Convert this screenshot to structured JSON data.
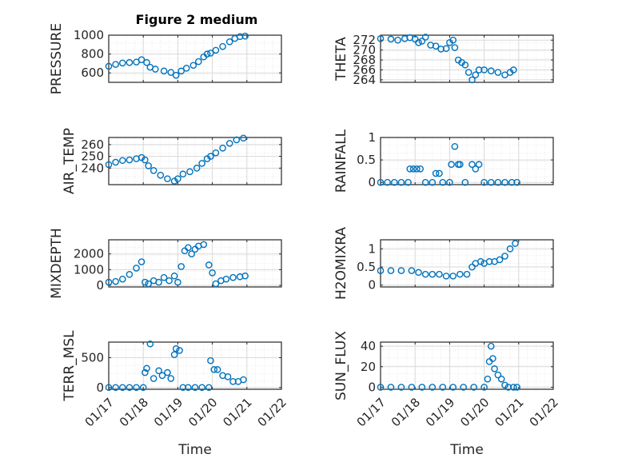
{
  "figure": {
    "title": "Figure 2 medium"
  },
  "colors": {
    "marker": "#0072BD",
    "axis": "#262626",
    "grid": "#d9d9d9"
  },
  "chart_data": [
    {
      "id": "pressure",
      "type": "scatter",
      "ylabel": "PRESSURE",
      "ylim": [
        500,
        1000
      ],
      "yticks": [
        600,
        800,
        1000
      ],
      "yticklabels": [
        "600",
        "800",
        "1000"
      ],
      "xlim": [
        0,
        5
      ],
      "xticks": [
        0,
        1,
        2,
        3,
        4,
        5
      ],
      "xticklabels": [],
      "xlabel": "",
      "series": [
        {
          "points": [
            [
              0,
              670
            ],
            [
              0.2,
              690
            ],
            [
              0.4,
              705
            ],
            [
              0.6,
              710
            ],
            [
              0.8,
              715
            ],
            [
              0.95,
              740
            ],
            [
              1.1,
              710
            ],
            [
              1.2,
              660
            ],
            [
              1.35,
              640
            ],
            [
              1.6,
              620
            ],
            [
              1.8,
              605
            ],
            [
              1.95,
              575
            ],
            [
              2.1,
              620
            ],
            [
              2.25,
              650
            ],
            [
              2.45,
              680
            ],
            [
              2.6,
              720
            ],
            [
              2.75,
              770
            ],
            [
              2.85,
              800
            ],
            [
              2.95,
              810
            ],
            [
              3.1,
              840
            ],
            [
              3.3,
              880
            ],
            [
              3.5,
              930
            ],
            [
              3.65,
              965
            ],
            [
              3.8,
              985
            ],
            [
              3.95,
              990
            ]
          ]
        }
      ]
    },
    {
      "id": "theta",
      "type": "scatter",
      "ylabel": "THETA",
      "ylim": [
        263.5,
        273
      ],
      "yticks": [
        264,
        266,
        268,
        270,
        272
      ],
      "yticklabels": [
        "264",
        "266",
        "268",
        "270",
        "272"
      ],
      "xlim": [
        0,
        5
      ],
      "xticks": [
        0,
        1,
        2,
        3,
        4,
        5
      ],
      "xticklabels": [],
      "xlabel": "",
      "series": [
        {
          "points": [
            [
              0,
              272.3
            ],
            [
              0.3,
              272.2
            ],
            [
              0.5,
              272.0
            ],
            [
              0.7,
              272.3
            ],
            [
              0.85,
              272.5
            ],
            [
              1.0,
              272.2
            ],
            [
              1.1,
              271.5
            ],
            [
              1.2,
              271.8
            ],
            [
              1.3,
              272.6
            ],
            [
              1.45,
              271.0
            ],
            [
              1.6,
              270.8
            ],
            [
              1.75,
              270.2
            ],
            [
              1.9,
              270.3
            ],
            [
              2.0,
              271.5
            ],
            [
              2.1,
              272.0
            ],
            [
              2.15,
              270.5
            ],
            [
              2.25,
              268.0
            ],
            [
              2.35,
              267.5
            ],
            [
              2.45,
              267.0
            ],
            [
              2.55,
              265.5
            ],
            [
              2.65,
              264.0
            ],
            [
              2.75,
              265.0
            ],
            [
              2.85,
              266.0
            ],
            [
              3.0,
              266.0
            ],
            [
              3.2,
              265.8
            ],
            [
              3.4,
              265.5
            ],
            [
              3.6,
              265.0
            ],
            [
              3.75,
              265.5
            ],
            [
              3.85,
              266.0
            ]
          ]
        }
      ]
    },
    {
      "id": "air_temp",
      "type": "scatter",
      "ylabel": "AIR_TEMP",
      "ylim": [
        226,
        266
      ],
      "yticks": [
        240,
        250,
        260
      ],
      "yticklabels": [
        "240",
        "250",
        "260"
      ],
      "xlim": [
        0,
        5
      ],
      "xticks": [
        0,
        1,
        2,
        3,
        4,
        5
      ],
      "xticklabels": [],
      "xlabel": "",
      "series": [
        {
          "points": [
            [
              0,
              243
            ],
            [
              0.2,
              245
            ],
            [
              0.4,
              246.5
            ],
            [
              0.6,
              247
            ],
            [
              0.8,
              248
            ],
            [
              0.95,
              249
            ],
            [
              1.05,
              247
            ],
            [
              1.15,
              242
            ],
            [
              1.3,
              238
            ],
            [
              1.5,
              234
            ],
            [
              1.7,
              231
            ],
            [
              1.9,
              229
            ],
            [
              2.0,
              231
            ],
            [
              2.15,
              235
            ],
            [
              2.35,
              237
            ],
            [
              2.55,
              240
            ],
            [
              2.7,
              244
            ],
            [
              2.85,
              248
            ],
            [
              2.95,
              250
            ],
            [
              3.1,
              253
            ],
            [
              3.3,
              257
            ],
            [
              3.5,
              261
            ],
            [
              3.7,
              264
            ],
            [
              3.9,
              265.5
            ]
          ]
        }
      ]
    },
    {
      "id": "rainfall",
      "type": "scatter",
      "ylabel": "RAINFALL",
      "ylim": [
        -0.05,
        1
      ],
      "yticks": [
        0,
        0.5,
        1
      ],
      "yticklabels": [
        "0",
        "0.5",
        "1"
      ],
      "xlim": [
        0,
        5
      ],
      "xticks": [
        0,
        1,
        2,
        3,
        4,
        5
      ],
      "xticklabels": [],
      "xlabel": "",
      "series": [
        {
          "points": [
            [
              0,
              0
            ],
            [
              0.2,
              0
            ],
            [
              0.4,
              0
            ],
            [
              0.6,
              0
            ],
            [
              0.8,
              0
            ],
            [
              0.85,
              0.3
            ],
            [
              0.95,
              0.3
            ],
            [
              1.05,
              0.3
            ],
            [
              1.15,
              0.3
            ],
            [
              1.3,
              0
            ],
            [
              1.5,
              0
            ],
            [
              1.6,
              0.2
            ],
            [
              1.7,
              0.2
            ],
            [
              1.8,
              0
            ],
            [
              2.0,
              0
            ],
            [
              2.05,
              0.4
            ],
            [
              2.15,
              0.8
            ],
            [
              2.25,
              0.4
            ],
            [
              2.3,
              0.4
            ],
            [
              2.45,
              0
            ],
            [
              2.65,
              0.4
            ],
            [
              2.75,
              0.3
            ],
            [
              2.85,
              0.4
            ],
            [
              3.0,
              0
            ],
            [
              3.2,
              0
            ],
            [
              3.4,
              0
            ],
            [
              3.6,
              0
            ],
            [
              3.8,
              0
            ],
            [
              3.95,
              0
            ]
          ]
        }
      ]
    },
    {
      "id": "mixdepth",
      "type": "scatter",
      "ylabel": "MIXDEPTH",
      "ylim": [
        -100,
        2900
      ],
      "yticks": [
        0,
        1000,
        2000
      ],
      "yticklabels": [
        "0",
        "1000",
        "2000"
      ],
      "xlim": [
        0,
        5
      ],
      "xticks": [
        0,
        1,
        2,
        3,
        4,
        5
      ],
      "xticklabels": [],
      "xlabel": "",
      "series": [
        {
          "points": [
            [
              0,
              200
            ],
            [
              0.2,
              250
            ],
            [
              0.4,
              400
            ],
            [
              0.6,
              700
            ],
            [
              0.8,
              1100
            ],
            [
              0.95,
              1500
            ],
            [
              1.05,
              200
            ],
            [
              1.15,
              100
            ],
            [
              1.3,
              300
            ],
            [
              1.45,
              200
            ],
            [
              1.6,
              500
            ],
            [
              1.75,
              300
            ],
            [
              1.9,
              600
            ],
            [
              2.0,
              200
            ],
            [
              2.1,
              1200
            ],
            [
              2.2,
              2200
            ],
            [
              2.3,
              2400
            ],
            [
              2.4,
              2000
            ],
            [
              2.5,
              2300
            ],
            [
              2.6,
              2500
            ],
            [
              2.75,
              2600
            ],
            [
              2.9,
              1300
            ],
            [
              3.0,
              800
            ],
            [
              3.1,
              100
            ],
            [
              3.25,
              300
            ],
            [
              3.4,
              400
            ],
            [
              3.6,
              500
            ],
            [
              3.8,
              550
            ],
            [
              3.95,
              600
            ]
          ]
        }
      ]
    },
    {
      "id": "h2omixra",
      "type": "scatter",
      "ylabel": "H2OMIXRA",
      "ylim": [
        -0.05,
        1.25
      ],
      "yticks": [
        0,
        0.5,
        1
      ],
      "yticklabels": [
        "0",
        "0.5",
        "1"
      ],
      "xlim": [
        0,
        5
      ],
      "xticks": [
        0,
        1,
        2,
        3,
        4,
        5
      ],
      "xticklabels": [],
      "xlabel": "",
      "series": [
        {
          "points": [
            [
              0,
              0.4
            ],
            [
              0.3,
              0.4
            ],
            [
              0.6,
              0.4
            ],
            [
              0.9,
              0.4
            ],
            [
              1.1,
              0.35
            ],
            [
              1.3,
              0.3
            ],
            [
              1.5,
              0.3
            ],
            [
              1.7,
              0.3
            ],
            [
              1.9,
              0.25
            ],
            [
              2.1,
              0.25
            ],
            [
              2.3,
              0.3
            ],
            [
              2.5,
              0.3
            ],
            [
              2.65,
              0.5
            ],
            [
              2.75,
              0.6
            ],
            [
              2.9,
              0.65
            ],
            [
              3.0,
              0.6
            ],
            [
              3.15,
              0.65
            ],
            [
              3.3,
              0.65
            ],
            [
              3.45,
              0.7
            ],
            [
              3.6,
              0.8
            ],
            [
              3.75,
              1.0
            ],
            [
              3.9,
              1.15
            ]
          ]
        }
      ]
    },
    {
      "id": "terr_msl",
      "type": "scatter",
      "ylabel": "TERR_MSL",
      "ylim": [
        -30,
        760
      ],
      "yticks": [
        0,
        500
      ],
      "yticklabels": [
        "0",
        "500"
      ],
      "xlim": [
        0,
        5
      ],
      "xticks": [
        0,
        1,
        2,
        3,
        4,
        5
      ],
      "xticklabels": [
        "01/17",
        "01/18",
        "01/19",
        "01/20",
        "01/21",
        "01/22"
      ],
      "xlabel": "Time",
      "series": [
        {
          "points": [
            [
              0,
              0
            ],
            [
              0.2,
              0
            ],
            [
              0.4,
              0
            ],
            [
              0.6,
              0
            ],
            [
              0.8,
              0
            ],
            [
              1.0,
              0
            ],
            [
              1.05,
              250
            ],
            [
              1.1,
              320
            ],
            [
              1.2,
              730
            ],
            [
              1.3,
              150
            ],
            [
              1.45,
              280
            ],
            [
              1.55,
              200
            ],
            [
              1.7,
              250
            ],
            [
              1.8,
              150
            ],
            [
              1.9,
              550
            ],
            [
              1.95,
              650
            ],
            [
              2.05,
              620
            ],
            [
              2.15,
              0
            ],
            [
              2.3,
              0
            ],
            [
              2.5,
              0
            ],
            [
              2.7,
              0
            ],
            [
              2.9,
              0
            ],
            [
              2.95,
              450
            ],
            [
              3.05,
              300
            ],
            [
              3.15,
              300
            ],
            [
              3.3,
              200
            ],
            [
              3.45,
              180
            ],
            [
              3.6,
              100
            ],
            [
              3.75,
              100
            ],
            [
              3.9,
              130
            ]
          ]
        }
      ]
    },
    {
      "id": "sun_flux",
      "type": "scatter",
      "ylabel": "SUN_FLUX",
      "ylim": [
        -2,
        44
      ],
      "yticks": [
        0,
        20,
        40
      ],
      "yticklabels": [
        "0",
        "20",
        "40"
      ],
      "xlim": [
        0,
        5
      ],
      "xticks": [
        0,
        1,
        2,
        3,
        4,
        5
      ],
      "xticklabels": [
        "01/17",
        "01/18",
        "01/19",
        "01/20",
        "01/21",
        "01/22"
      ],
      "xlabel": "Time",
      "series": [
        {
          "points": [
            [
              0,
              0
            ],
            [
              0.3,
              0
            ],
            [
              0.6,
              0
            ],
            [
              0.9,
              0
            ],
            [
              1.2,
              0
            ],
            [
              1.5,
              0
            ],
            [
              1.8,
              0
            ],
            [
              2.1,
              0
            ],
            [
              2.4,
              0
            ],
            [
              2.7,
              0
            ],
            [
              3.0,
              0
            ],
            [
              3.1,
              8
            ],
            [
              3.15,
              25
            ],
            [
              3.2,
              40
            ],
            [
              3.25,
              28
            ],
            [
              3.3,
              18
            ],
            [
              3.4,
              12
            ],
            [
              3.5,
              8
            ],
            [
              3.6,
              2
            ],
            [
              3.7,
              0
            ],
            [
              3.85,
              0
            ],
            [
              3.95,
              0
            ]
          ]
        }
      ]
    }
  ]
}
